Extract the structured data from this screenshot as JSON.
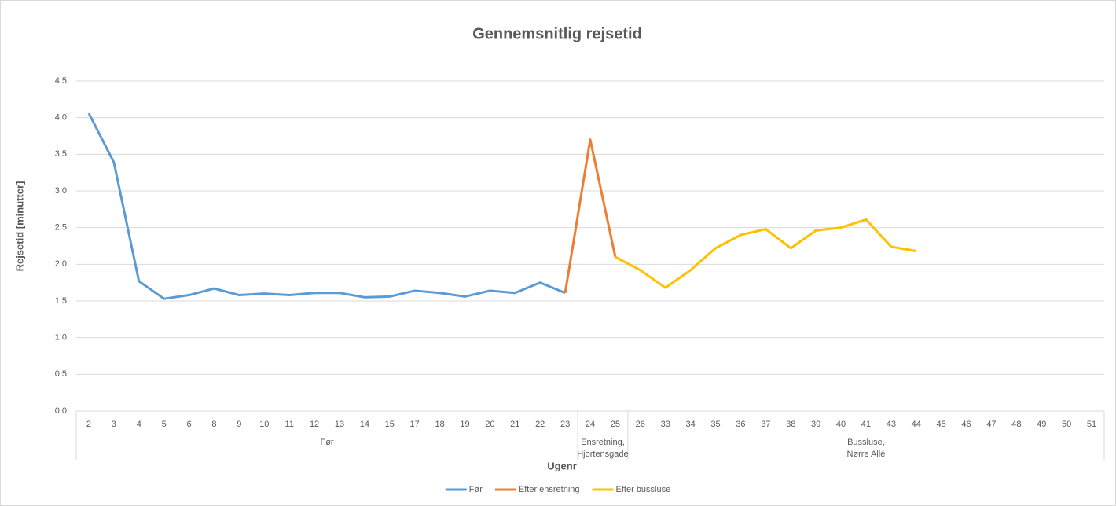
{
  "chart_data": {
    "type": "line",
    "title": "Gennemsnitlig rejsetid",
    "xlabel": "Ugenr",
    "ylabel": "Rejsetid [minutter]",
    "categories": [
      "2",
      "3",
      "4",
      "5",
      "6",
      "8",
      "9",
      "10",
      "11",
      "12",
      "13",
      "14",
      "15",
      "17",
      "18",
      "19",
      "20",
      "21",
      "22",
      "23",
      "24",
      "25",
      "26",
      "33",
      "34",
      "35",
      "36",
      "37",
      "38",
      "39",
      "40",
      "41",
      "43",
      "44",
      "45",
      "46",
      "47",
      "48",
      "49",
      "50",
      "51"
    ],
    "groups": [
      {
        "lines": [
          "Før"
        ],
        "count": 20
      },
      {
        "lines": [
          "Ensretning,",
          "Hjortensgade"
        ],
        "count": 2
      },
      {
        "lines": [
          "Bussluse,",
          "Nørre Allé"
        ],
        "count": 19
      }
    ],
    "series": [
      {
        "name": "Før",
        "color": "#5b9bd5",
        "values": [
          4.06,
          3.39,
          1.77,
          1.53,
          1.58,
          1.67,
          1.58,
          1.6,
          1.58,
          1.61,
          1.61,
          1.55,
          1.56,
          1.64,
          1.61,
          1.56,
          1.64,
          1.61,
          1.75,
          1.61,
          null,
          null,
          null,
          null,
          null,
          null,
          null,
          null,
          null,
          null,
          null,
          null,
          null,
          null,
          null,
          null,
          null,
          null,
          null,
          null,
          null
        ]
      },
      {
        "name": "Efter ensretning",
        "color": "#ed7d31",
        "values": [
          null,
          null,
          null,
          null,
          null,
          null,
          null,
          null,
          null,
          null,
          null,
          null,
          null,
          null,
          null,
          null,
          null,
          null,
          null,
          1.61,
          3.7,
          2.1,
          null,
          null,
          null,
          null,
          null,
          null,
          null,
          null,
          null,
          null,
          null,
          null,
          null,
          null,
          null,
          null,
          null,
          null,
          null
        ]
      },
      {
        "name": "Efter bussluse",
        "color": "#ffc000",
        "values": [
          null,
          null,
          null,
          null,
          null,
          null,
          null,
          null,
          null,
          null,
          null,
          null,
          null,
          null,
          null,
          null,
          null,
          null,
          null,
          null,
          null,
          2.1,
          1.92,
          1.68,
          1.92,
          2.22,
          2.4,
          2.48,
          2.22,
          2.46,
          2.5,
          2.61,
          2.24,
          2.18,
          null,
          null,
          null,
          null,
          null,
          null,
          null
        ]
      }
    ],
    "ylim": [
      0,
      4.5
    ],
    "yticks": [
      {
        "value": 0,
        "label": "0,0"
      },
      {
        "value": 0.5,
        "label": "0,5"
      },
      {
        "value": 1,
        "label": "1,0"
      },
      {
        "value": 1.5,
        "label": "1,5"
      },
      {
        "value": 2,
        "label": "2,0"
      },
      {
        "value": 2.5,
        "label": "2,5"
      },
      {
        "value": 3,
        "label": "3,0"
      },
      {
        "value": 3.5,
        "label": "3,5"
      },
      {
        "value": 4,
        "label": "4,0"
      },
      {
        "value": 4.5,
        "label": "4,5"
      }
    ],
    "grid": true,
    "legend": "bottom"
  }
}
